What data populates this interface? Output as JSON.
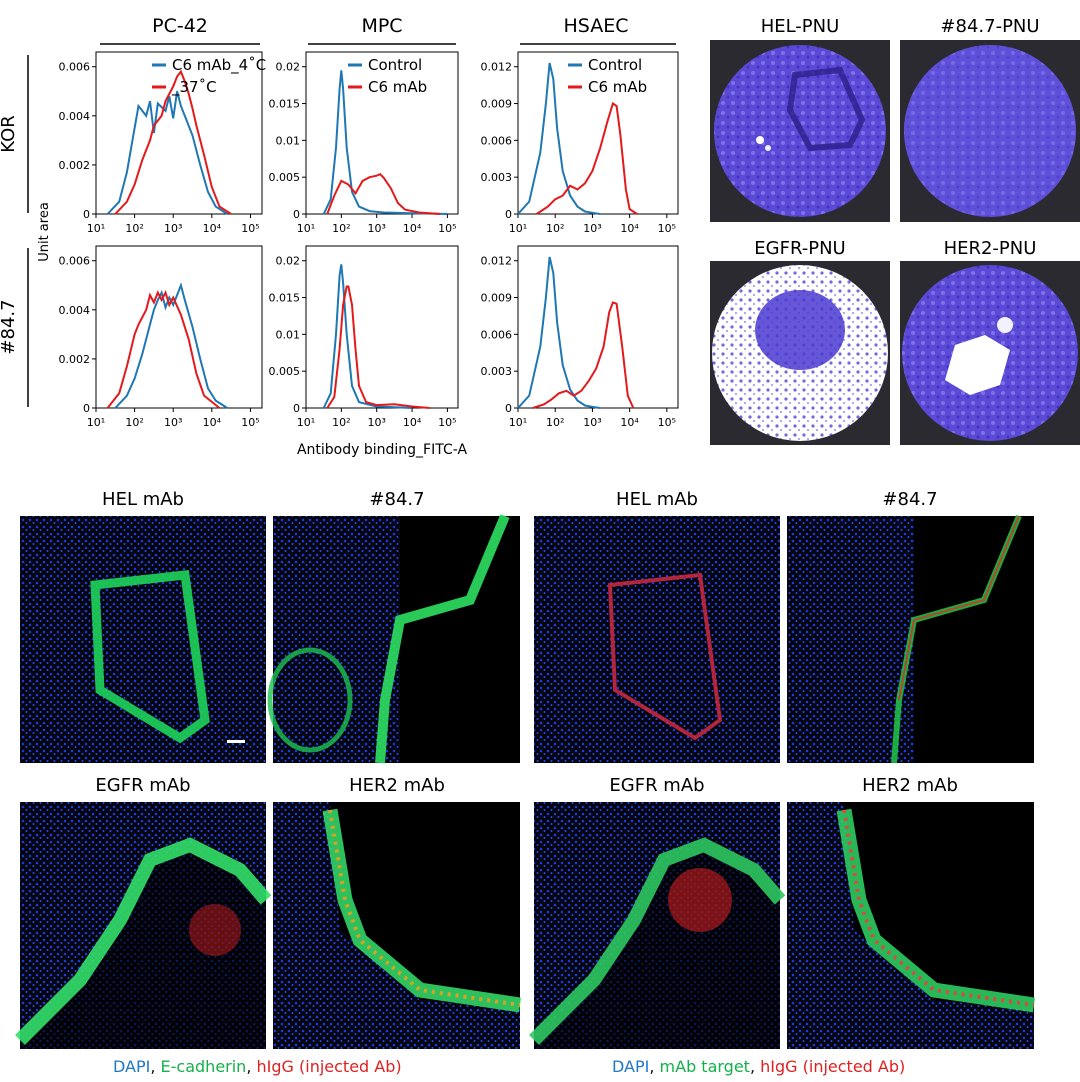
{
  "flow": {
    "columns": [
      "PC-42",
      "MPC",
      "HSAEC"
    ],
    "rows": [
      "KOR",
      "#84.7"
    ],
    "ylabel": "Unit area",
    "xlabel": "Antibody binding_FITC-A",
    "xticks": [
      "10¹",
      "10²",
      "10³",
      "10⁴",
      "10⁵"
    ],
    "legends": {
      "PC-42": [
        "C6 mAb_4˚C",
        "_37˚C"
      ],
      "MPC": [
        "Control",
        "C6 mAb"
      ],
      "HSAEC": [
        "Control",
        "C6 mAb"
      ]
    },
    "colors": {
      "blue": "#1f77b4",
      "red": "#e31a1c"
    }
  },
  "chart_data": [
    {
      "type": "line",
      "panel": "PC-42 / KOR",
      "xscale": "log",
      "xlim": [
        1,
        5.3
      ],
      "ylim": [
        0,
        0.0066
      ],
      "yticks": [
        0,
        0.002,
        0.004,
        0.006
      ],
      "series": [
        {
          "name": "C6 mAb_4˚C",
          "x": [
            1.3,
            1.6,
            1.8,
            2.0,
            2.1,
            2.3,
            2.4,
            2.5,
            2.6,
            2.8,
            2.9,
            3.0,
            3.1,
            3.2,
            3.3,
            3.5,
            3.7,
            3.9,
            4.1,
            4.4
          ],
          "y": [
            0,
            0.0005,
            0.0017,
            0.0035,
            0.0044,
            0.004,
            0.0046,
            0.0033,
            0.0045,
            0.0042,
            0.0048,
            0.0039,
            0.005,
            0.0044,
            0.004,
            0.0032,
            0.002,
            0.0009,
            0.0003,
            0
          ]
        },
        {
          "name": "_37˚C",
          "x": [
            1.5,
            1.8,
            2.0,
            2.2,
            2.4,
            2.5,
            2.7,
            2.8,
            3.0,
            3.1,
            3.2,
            3.3,
            3.4,
            3.5,
            3.6,
            3.8,
            4.0,
            4.2,
            4.5
          ],
          "y": [
            0,
            0.0005,
            0.0012,
            0.0022,
            0.003,
            0.0036,
            0.004,
            0.0046,
            0.0052,
            0.0056,
            0.0058,
            0.0054,
            0.0049,
            0.0043,
            0.0036,
            0.0024,
            0.0011,
            0.0003,
            0
          ]
        }
      ]
    },
    {
      "type": "line",
      "panel": "MPC / KOR",
      "xscale": "log",
      "xlim": [
        1,
        5.3
      ],
      "ylim": [
        0,
        0.022
      ],
      "yticks": [
        0,
        0.005,
        0.01,
        0.015,
        0.02
      ],
      "series": [
        {
          "name": "Control",
          "x": [
            1.5,
            1.7,
            1.85,
            1.95,
            2.0,
            2.05,
            2.15,
            2.3,
            2.5,
            2.8,
            3.2,
            4.0,
            5.0
          ],
          "y": [
            0,
            0.002,
            0.009,
            0.017,
            0.0195,
            0.017,
            0.009,
            0.003,
            0.001,
            0.0004,
            0.0002,
            0.0001,
            0
          ]
        },
        {
          "name": "C6 mAb",
          "x": [
            1.6,
            1.8,
            2.0,
            2.2,
            2.4,
            2.6,
            2.8,
            3.0,
            3.1,
            3.2,
            3.4,
            3.6,
            3.8,
            4.2,
            4.8
          ],
          "y": [
            0,
            0.0025,
            0.0045,
            0.004,
            0.0028,
            0.0045,
            0.005,
            0.0052,
            0.0054,
            0.0049,
            0.0035,
            0.0015,
            0.0006,
            0.0002,
            0
          ]
        }
      ]
    },
    {
      "type": "line",
      "panel": "HSAEC / KOR",
      "xscale": "log",
      "xlim": [
        1,
        5.3
      ],
      "ylim": [
        0,
        0.0132
      ],
      "yticks": [
        0,
        0.003,
        0.006,
        0.009,
        0.012
      ],
      "series": [
        {
          "name": "Control",
          "x": [
            1.0,
            1.3,
            1.6,
            1.75,
            1.85,
            1.95,
            2.05,
            2.2,
            2.4,
            2.6,
            2.8,
            3.0,
            3.2
          ],
          "y": [
            0,
            0.001,
            0.005,
            0.009,
            0.0123,
            0.011,
            0.007,
            0.0035,
            0.0015,
            0.0006,
            0.0002,
            0.0001,
            0
          ]
        },
        {
          "name": "C6 mAb",
          "x": [
            1.5,
            1.8,
            2.0,
            2.2,
            2.4,
            2.6,
            2.8,
            3.0,
            3.2,
            3.4,
            3.55,
            3.65,
            3.75,
            3.9,
            4.0,
            4.2
          ],
          "y": [
            0,
            0.0006,
            0.0012,
            0.0015,
            0.0023,
            0.002,
            0.0025,
            0.0035,
            0.0053,
            0.0075,
            0.009,
            0.0088,
            0.0065,
            0.002,
            0.0004,
            0
          ]
        }
      ]
    },
    {
      "type": "line",
      "panel": "PC-42 / #84.7",
      "xscale": "log",
      "xlim": [
        1,
        5.3
      ],
      "ylim": [
        0,
        0.0066
      ],
      "yticks": [
        0,
        0.002,
        0.004,
        0.006
      ],
      "series": [
        {
          "name": "C6 mAb_4˚C",
          "x": [
            1.5,
            1.8,
            2.0,
            2.2,
            2.4,
            2.5,
            2.6,
            2.7,
            2.8,
            2.9,
            3.0,
            3.1,
            3.2,
            3.3,
            3.5,
            3.7,
            3.9,
            4.1,
            4.4
          ],
          "y": [
            0,
            0.0005,
            0.0012,
            0.0022,
            0.0034,
            0.004,
            0.0044,
            0.0047,
            0.0041,
            0.0045,
            0.0042,
            0.0046,
            0.005,
            0.0044,
            0.0033,
            0.002,
            0.0008,
            0.0003,
            0
          ]
        },
        {
          "name": "_37˚C",
          "x": [
            1.3,
            1.6,
            1.8,
            2.0,
            2.1,
            2.3,
            2.4,
            2.5,
            2.6,
            2.7,
            2.8,
            2.9,
            3.0,
            3.2,
            3.4,
            3.6,
            3.8,
            4.2
          ],
          "y": [
            0,
            0.0006,
            0.0017,
            0.003,
            0.0034,
            0.004,
            0.0046,
            0.0043,
            0.0047,
            0.0044,
            0.0047,
            0.0042,
            0.0045,
            0.0038,
            0.0028,
            0.0014,
            0.0005,
            0
          ]
        }
      ]
    },
    {
      "type": "line",
      "panel": "MPC / #84.7",
      "xscale": "log",
      "xlim": [
        1,
        5.3
      ],
      "ylim": [
        0,
        0.022
      ],
      "yticks": [
        0,
        0.005,
        0.01,
        0.015,
        0.02
      ],
      "series": [
        {
          "name": "Control",
          "x": [
            1.5,
            1.7,
            1.85,
            1.95,
            2.0,
            2.05,
            2.15,
            2.3,
            2.5,
            3.0,
            4.0
          ],
          "y": [
            0,
            0.002,
            0.01,
            0.018,
            0.0195,
            0.017,
            0.01,
            0.003,
            0.0008,
            0.0002,
            0
          ]
        },
        {
          "name": "C6 mAb",
          "x": [
            1.6,
            1.8,
            1.95,
            2.05,
            2.15,
            2.2,
            2.3,
            2.4,
            2.5,
            2.7,
            3.0,
            3.5,
            4.0,
            4.5
          ],
          "y": [
            0,
            0.0015,
            0.008,
            0.014,
            0.0165,
            0.0165,
            0.014,
            0.008,
            0.003,
            0.0008,
            0.0004,
            0.0005,
            0.0002,
            0
          ]
        }
      ]
    },
    {
      "type": "line",
      "panel": "HSAEC / #84.7",
      "xscale": "log",
      "xlim": [
        1,
        5.3
      ],
      "ylim": [
        0,
        0.0132
      ],
      "yticks": [
        0,
        0.003,
        0.006,
        0.009,
        0.012
      ],
      "series": [
        {
          "name": "Control",
          "x": [
            1.0,
            1.3,
            1.6,
            1.75,
            1.85,
            1.95,
            2.05,
            2.2,
            2.4,
            2.6,
            2.8,
            3.0,
            3.2
          ],
          "y": [
            0,
            0.001,
            0.005,
            0.009,
            0.0123,
            0.011,
            0.007,
            0.0035,
            0.0015,
            0.0006,
            0.0002,
            0.0001,
            0
          ]
        },
        {
          "name": "C6 mAb",
          "x": [
            1.4,
            1.7,
            1.9,
            2.1,
            2.3,
            2.5,
            2.7,
            2.9,
            3.1,
            3.3,
            3.45,
            3.55,
            3.65,
            3.8,
            3.95,
            4.1
          ],
          "y": [
            0,
            0.0003,
            0.0007,
            0.0012,
            0.0014,
            0.001,
            0.0014,
            0.0022,
            0.0032,
            0.005,
            0.0078,
            0.0086,
            0.0085,
            0.005,
            0.001,
            0
          ]
        }
      ]
    }
  ],
  "plates": [
    {
      "label": "HEL-PNU",
      "style": "blue-crease"
    },
    {
      "label": "#84.7-PNU",
      "style": "blue-uniform"
    },
    {
      "label": "EGFR-PNU",
      "style": "white-dense"
    },
    {
      "label": "HER2-PNU",
      "style": "white-patch"
    }
  ],
  "micro": {
    "titles": [
      "HEL mAb",
      "#84.7",
      "HEL mAb",
      "#84.7",
      "EGFR mAb",
      "HER2 mAb",
      "EGFR mAb",
      "HER2 mAb"
    ],
    "caption_left": {
      "a": "DAPI",
      "b": "E-cadherin",
      "c": "hIgG (injected Ab)"
    },
    "caption_right": {
      "a": "DAPI",
      "b": "mAb target",
      "c": "hIgG (injected Ab)"
    }
  }
}
